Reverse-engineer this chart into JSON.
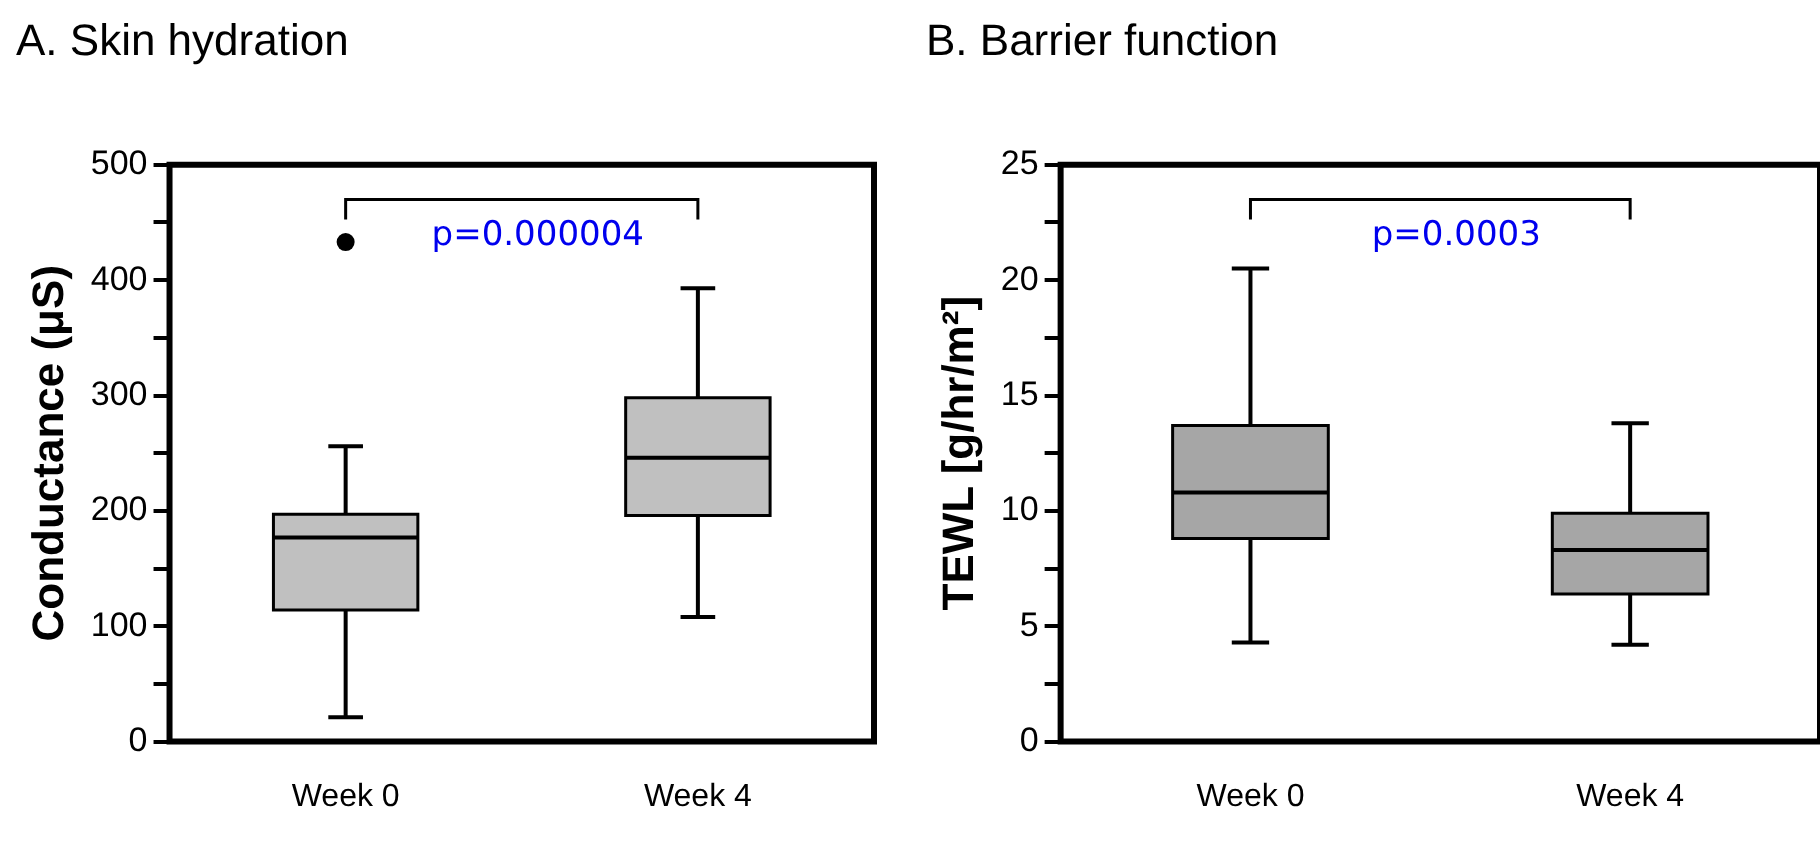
{
  "chart_data": [
    {
      "type": "box",
      "title": "A. Skin hydration",
      "ylabel": "Conductance (μS)",
      "categories": [
        "Week 0",
        "Week 4"
      ],
      "color": "#c0c0c0",
      "boxes": [
        {
          "low": 21,
          "q1": 114,
          "median": 177,
          "q3": 197,
          "high": 256,
          "outliers": [
            433
          ]
        },
        {
          "low": 108,
          "q1": 196,
          "median": 246,
          "q3": 298,
          "high": 393
        }
      ],
      "ylim": [
        0,
        500
      ],
      "yticks": [
        0,
        {
          "value": 50,
          "label": null
        },
        100,
        {
          "value": 150,
          "label": null
        },
        200,
        {
          "value": 250,
          "label": null
        },
        300,
        {
          "value": 350,
          "label": null
        },
        400,
        {
          "value": 450,
          "label": null
        },
        500
      ],
      "grid": false,
      "legend": false,
      "annotations": [
        "p=0.000004"
      ]
    },
    {
      "type": "box",
      "title": "B. Barrier function",
      "ylabel": "TEWL [g/hr/m²]",
      "categories": [
        "Week 0",
        "Week 4"
      ],
      "color": "#a6a6a6",
      "boxes": [
        {
          "low": 4.3,
          "q1": 8.8,
          "median": 10.8,
          "q3": 13.7,
          "high": 20.5
        },
        {
          "low": 4.2,
          "q1": 6.4,
          "median": 8.3,
          "q3": 9.9,
          "high": 13.8
        }
      ],
      "ylim": [
        0,
        25
      ],
      "yticks": [
        0,
        {
          "value": 2.5,
          "label": null
        },
        5,
        {
          "value": 7.5,
          "label": null
        },
        10,
        {
          "value": 12.5,
          "label": null
        },
        15,
        {
          "value": 17.5,
          "label": null
        },
        20,
        {
          "value": 22.5,
          "label": null
        },
        25
      ],
      "grid": false,
      "legend": false,
      "annotations": [
        "p=0.0003"
      ]
    }
  ]
}
